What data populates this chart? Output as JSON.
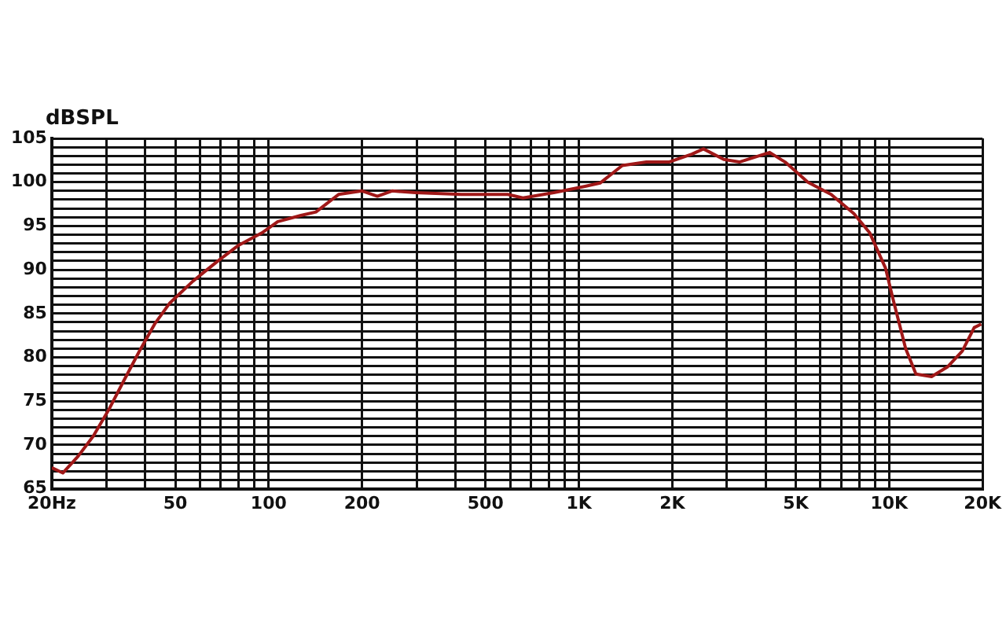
{
  "chart_data": {
    "type": "line",
    "ylabel": "dBSPL",
    "log": "x",
    "grid": true,
    "marker": "none",
    "legend": false,
    "xlim": [
      20,
      20000
    ],
    "ylim": [
      65,
      105
    ],
    "xticks": [
      {
        "value": 20,
        "label": "20Hz"
      },
      {
        "value": 30,
        "label": null
      },
      {
        "value": 40,
        "label": null
      },
      50,
      {
        "value": 60,
        "label": null
      },
      {
        "value": 70,
        "label": null
      },
      {
        "value": 80,
        "label": null
      },
      {
        "value": 90,
        "label": null
      },
      100,
      200,
      {
        "value": 300,
        "label": null
      },
      {
        "value": 400,
        "label": null
      },
      500,
      {
        "value": 600,
        "label": null
      },
      {
        "value": 700,
        "label": null
      },
      {
        "value": 800,
        "label": null
      },
      {
        "value": 900,
        "label": null
      },
      {
        "value": 1000,
        "label": "1K"
      },
      {
        "value": 2000,
        "label": "2K"
      },
      {
        "value": 3000,
        "label": null
      },
      {
        "value": 4000,
        "label": null
      },
      {
        "value": 5000,
        "label": "5K"
      },
      {
        "value": 6000,
        "label": null
      },
      {
        "value": 7000,
        "label": null
      },
      {
        "value": 8000,
        "label": null
      },
      {
        "value": 9000,
        "label": null
      },
      {
        "value": 10000,
        "label": "10K"
      },
      {
        "value": 20000,
        "label": "20K"
      }
    ],
    "yticks": [
      65,
      {
        "value": 66,
        "label": null
      },
      {
        "value": 67,
        "label": null
      },
      {
        "value": 68,
        "label": null
      },
      {
        "value": 69,
        "label": null
      },
      70,
      {
        "value": 71,
        "label": null
      },
      {
        "value": 72,
        "label": null
      },
      {
        "value": 73,
        "label": null
      },
      {
        "value": 74,
        "label": null
      },
      75,
      {
        "value": 76,
        "label": null
      },
      {
        "value": 77,
        "label": null
      },
      {
        "value": 78,
        "label": null
      },
      {
        "value": 79,
        "label": null
      },
      80,
      {
        "value": 81,
        "label": null
      },
      {
        "value": 82,
        "label": null
      },
      {
        "value": 83,
        "label": null
      },
      {
        "value": 84,
        "label": null
      },
      85,
      {
        "value": 86,
        "label": null
      },
      {
        "value": 87,
        "label": null
      },
      {
        "value": 88,
        "label": null
      },
      {
        "value": 89,
        "label": null
      },
      90,
      {
        "value": 91,
        "label": null
      },
      {
        "value": 92,
        "label": null
      },
      {
        "value": 93,
        "label": null
      },
      {
        "value": 94,
        "label": null
      },
      95,
      {
        "value": 96,
        "label": null
      },
      {
        "value": 97,
        "label": null
      },
      {
        "value": 98,
        "label": null
      },
      {
        "value": 99,
        "label": null
      },
      100,
      {
        "value": 101,
        "label": null
      },
      {
        "value": 102,
        "label": null
      },
      {
        "value": 103,
        "label": null
      },
      {
        "value": 104,
        "label": null
      },
      105
    ],
    "x": [
      20,
      21.7,
      24.3,
      27.2,
      30.5,
      34.2,
      38.3,
      42.9,
      48,
      57,
      68,
      80,
      95,
      107,
      127,
      142,
      168,
      200,
      224,
      250,
      297,
      418,
      590,
      660,
      830,
      1040,
      1170,
      1380,
      1650,
      1950,
      2310,
      2520,
      2930,
      3290,
      4120,
      4620,
      5470,
      6500,
      7700,
      8660,
      9730,
      10300,
      11300,
      12200,
      13700,
      15400,
      17200,
      18800,
      19800
    ],
    "series": [
      {
        "color": "#a01818",
        "values": [
          67.4,
          66.8,
          68.7,
          71,
          74,
          77.4,
          80.7,
          83.8,
          86.2,
          88.7,
          90.9,
          92.8,
          94.2,
          95.5,
          96.2,
          96.6,
          98.6,
          99,
          98.4,
          99,
          98.8,
          98.6,
          98.6,
          98.2,
          98.8,
          99.5,
          99.9,
          101.9,
          102.3,
          102.3,
          103.2,
          103.8,
          102.6,
          102.3,
          103.4,
          102.3,
          100,
          98.6,
          96.4,
          94.2,
          90.2,
          86.6,
          81,
          78.1,
          77.8,
          78.9,
          80.7,
          83.4,
          83.8
        ]
      }
    ]
  }
}
